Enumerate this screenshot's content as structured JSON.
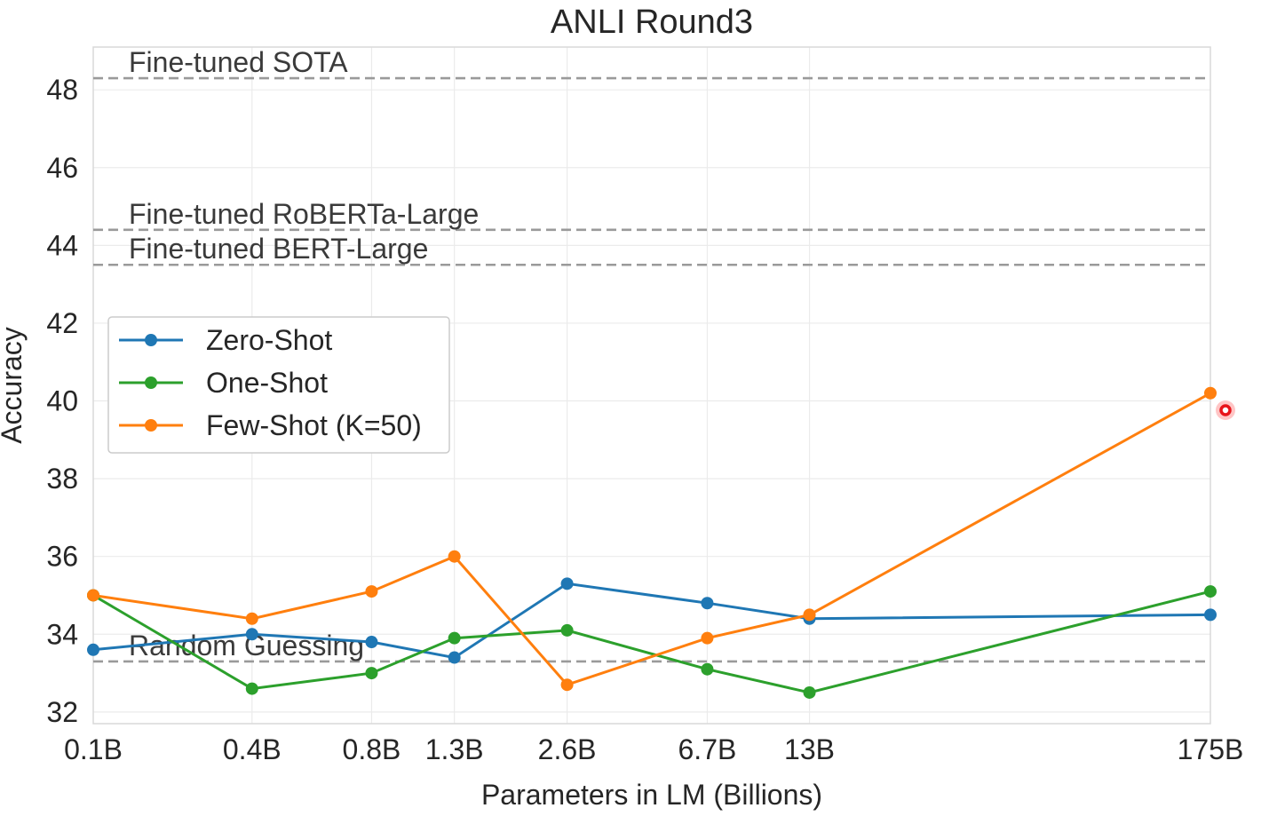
{
  "chart_data": {
    "type": "line",
    "title": "ANLI Round3",
    "xlabel": "Parameters in LM (Billions)",
    "ylabel": "Accuracy",
    "x_tick_labels": [
      "0.1B",
      "0.4B",
      "0.8B",
      "1.3B",
      "2.6B",
      "6.7B",
      "13B",
      "175B"
    ],
    "x_values": [
      0.125,
      0.35,
      0.76,
      1.3,
      2.7,
      6.7,
      13,
      175
    ],
    "x_scale": "log",
    "y_ticks": [
      32,
      34,
      36,
      38,
      40,
      42,
      44,
      46,
      48
    ],
    "ylim": [
      31.7,
      49.1
    ],
    "grid": true,
    "legend_position": "center-left",
    "series": [
      {
        "name": "Zero-Shot",
        "color": "#1f77b4",
        "values": [
          33.6,
          34.0,
          33.8,
          33.4,
          35.3,
          34.8,
          34.4,
          34.5
        ]
      },
      {
        "name": "One-Shot",
        "color": "#2ca02c",
        "values": [
          35.0,
          32.6,
          33.0,
          33.9,
          34.1,
          33.1,
          32.5,
          35.1
        ]
      },
      {
        "name": "Few-Shot (K=50)",
        "color": "#ff7f0e",
        "values": [
          35.0,
          34.4,
          35.1,
          36.0,
          32.7,
          33.9,
          34.5,
          40.2
        ]
      }
    ],
    "reference_lines": [
      {
        "label": "Fine-tuned SOTA",
        "value": 48.3
      },
      {
        "label": "Fine-tuned RoBERTa-Large",
        "value": 44.4
      },
      {
        "label": "Fine-tuned BERT-Large",
        "value": 43.5
      },
      {
        "label": "Random Guessing",
        "value": 33.3
      }
    ]
  }
}
